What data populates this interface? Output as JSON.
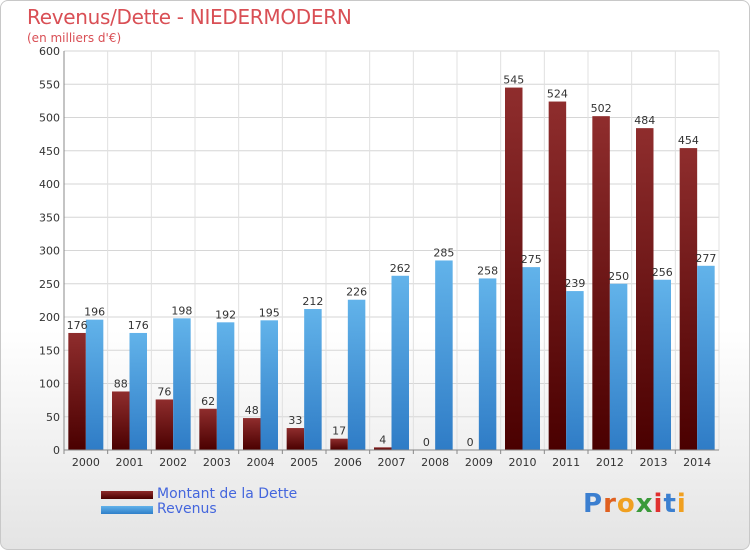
{
  "title": "Revenus/Dette - NIEDERMODERN",
  "subtitle": "(en milliers d'€)",
  "logo": "Proxiti",
  "colors": {
    "debt_top": "#8a2a2a",
    "debt_bottom": "#4a0000",
    "revenue_top": "#5fb0e8",
    "revenue_bottom": "#2e7cc6",
    "title": "#d94f55",
    "legend_text": "#4466dd"
  },
  "chart_data": {
    "type": "bar",
    "categories": [
      "2000",
      "2001",
      "2002",
      "2003",
      "2004",
      "2005",
      "2006",
      "2007",
      "2008",
      "2009",
      "2010",
      "2011",
      "2012",
      "2013",
      "2014"
    ],
    "series": [
      {
        "name": "Montant de la Dette",
        "values": [
          176,
          88,
          76,
          62,
          48,
          33,
          17,
          4,
          0,
          0,
          545,
          524,
          502,
          484,
          454
        ]
      },
      {
        "name": "Revenus",
        "values": [
          196,
          176,
          198,
          192,
          195,
          212,
          226,
          262,
          285,
          258,
          275,
          239,
          250,
          256,
          277
        ]
      }
    ],
    "ylim": [
      0,
      600
    ],
    "yticks": [
      0,
      50,
      100,
      150,
      200,
      250,
      300,
      350,
      400,
      450,
      500,
      550,
      600
    ],
    "grid": true,
    "legend": "bottom-left"
  }
}
